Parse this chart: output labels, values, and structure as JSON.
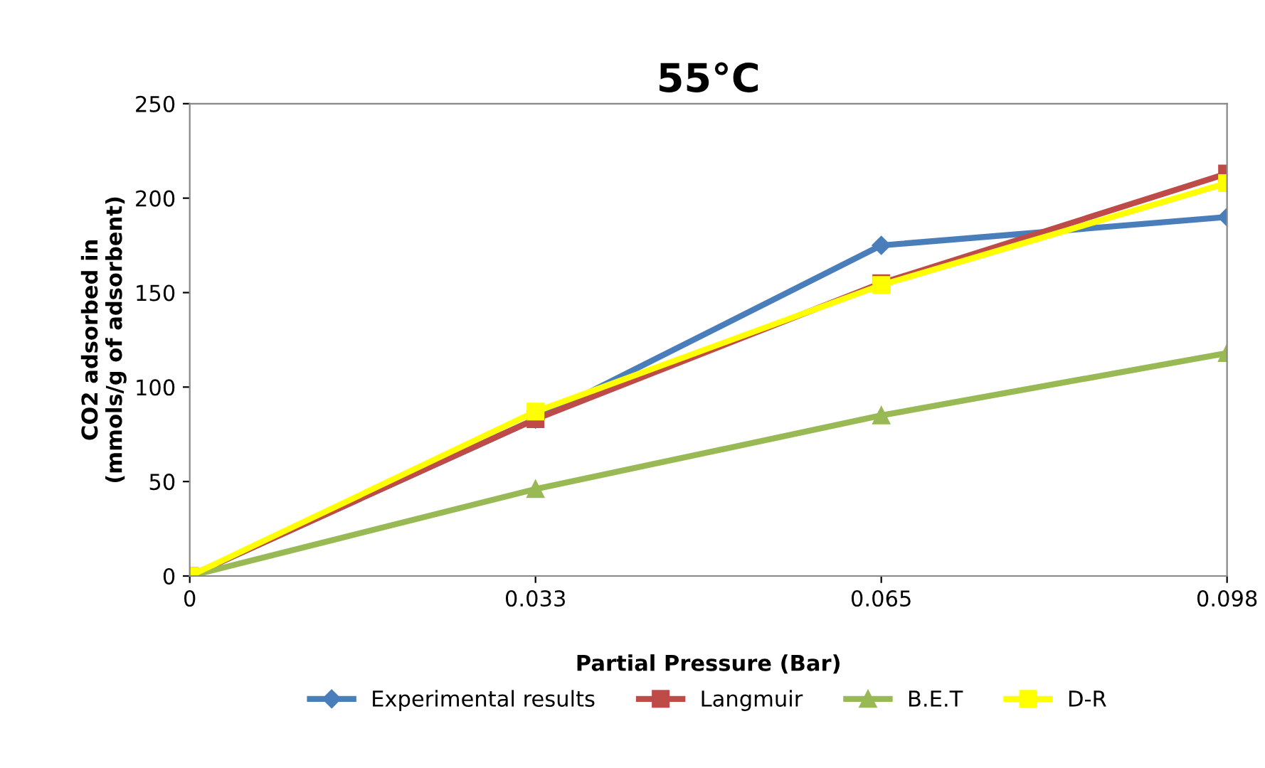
{
  "chart_data": {
    "type": "line",
    "title": "55°C",
    "xlabel": "Partial Pressure (Bar)",
    "ylabel": "CO2 adsorbed in\n(mmols/g of adsorbent)",
    "categories": [
      "0",
      "0.033",
      "0.065",
      "0.098"
    ],
    "series": [
      {
        "name": "Experimental results",
        "color": "#4a7ebb",
        "marker": "diamond",
        "values": [
          0,
          83,
          175,
          190
        ]
      },
      {
        "name": "Langmuir",
        "color": "#be4b48",
        "marker": "square",
        "values": [
          0,
          83,
          155,
          213
        ]
      },
      {
        "name": "B.E.T",
        "color": "#98b954",
        "marker": "triangle",
        "values": [
          0,
          46,
          85,
          118
        ]
      },
      {
        "name": "D-R",
        "color": "#ffff00",
        "marker": "square",
        "values": [
          0,
          87,
          154,
          208
        ]
      }
    ],
    "ylim": [
      0,
      250
    ],
    "yticks": [
      0,
      50,
      100,
      150,
      200,
      250
    ],
    "legend": "bottom",
    "line_style": "solid"
  }
}
